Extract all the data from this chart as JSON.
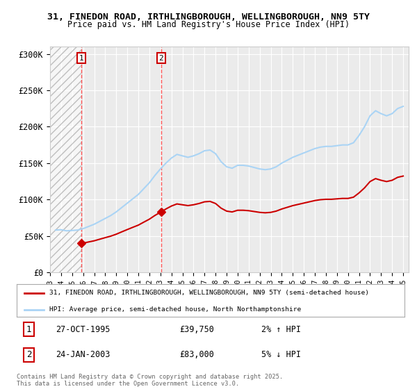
{
  "title": "31, FINEDON ROAD, IRTHLINGBOROUGH, WELLINGBOROUGH, NN9 5TY",
  "subtitle": "Price paid vs. HM Land Registry's House Price Index (HPI)",
  "legend_line1": "31, FINEDON ROAD, IRTHLINGBOROUGH, WELLINGBOROUGH, NN9 5TY (semi-detached house)",
  "legend_line2": "HPI: Average price, semi-detached house, North Northamptonshire",
  "sale1_date": "27-OCT-1995",
  "sale1_price": "£39,750",
  "sale1_hpi": "2% ↑ HPI",
  "sale1_year": 1995.82,
  "sale1_value": 39750,
  "sale2_date": "24-JAN-2003",
  "sale2_price": "£83,000",
  "sale2_hpi": "5% ↓ HPI",
  "sale2_year": 2003.07,
  "sale2_value": 83000,
  "footer": "Contains HM Land Registry data © Crown copyright and database right 2025.\nThis data is licensed under the Open Government Licence v3.0.",
  "hpi_color": "#aad4f5",
  "price_color": "#cc0000",
  "dashed_line_color": "#ff4444",
  "ylim": [
    0,
    310000
  ],
  "yticks": [
    0,
    50000,
    100000,
    150000,
    200000,
    250000,
    300000
  ],
  "ytick_labels": [
    "£0",
    "£50K",
    "£100K",
    "£150K",
    "£200K",
    "£250K",
    "£300K"
  ],
  "xlim_start": 1993.0,
  "xlim_end": 2025.5,
  "background_color": "#ffffff",
  "plot_bg_color": "#ebebeb"
}
